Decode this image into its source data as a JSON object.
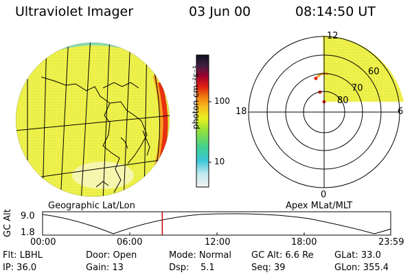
{
  "header": {
    "instrument": "Ultraviolet Imager",
    "date": "03 Jun 00",
    "time": "08:14:50 UT"
  },
  "colorbar": {
    "unit_label": "photon cm⁻²s⁻¹",
    "ticks": [
      "100",
      "10"
    ]
  },
  "polar": {
    "mlt_labels": [
      "12",
      "18",
      "6",
      "0"
    ],
    "lat_labels": [
      "60",
      "70",
      "80"
    ]
  },
  "panel_labels": {
    "left": "Geographic Lat/Lon",
    "right": "Apex MLat/MLT"
  },
  "altitude_plot": {
    "ylabel": "GC Alt",
    "y_ticks": [
      "9.0",
      "1.8"
    ],
    "x_ticks": [
      "00:00",
      "06:00",
      "12:00",
      "18:00",
      "23:59"
    ],
    "marker_time": "08:14:50",
    "colors": {
      "marker": "#cc0000"
    }
  },
  "info": {
    "flt": "Flt: LBHL",
    "door": "Door: Open",
    "mode": "Mode: Normal",
    "gc_alt": "GC Alt: 6.6 Re",
    "glat": "GLat: 33.0",
    "ip": "IP: 36.0",
    "gain": "Gain: 13",
    "dsp": "Dsp:    5.1",
    "seq": "Seq: 39",
    "glon": "GLon: 355.4"
  }
}
